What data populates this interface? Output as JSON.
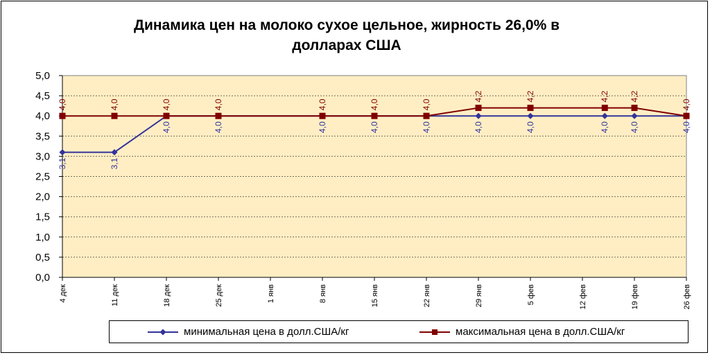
{
  "chart_data": {
    "type": "line",
    "title_line1": "Динамика цен на молоко сухое цельное, жирность 26,0%  в",
    "title_line2": "долларах  США",
    "categories": [
      "4 дек",
      "11 дек",
      "18 дек",
      "25 дек",
      "1 янв",
      "8 янв",
      "15 янв",
      "22 янв",
      "29 янв",
      "5 фев",
      "12 фев",
      "19 фев",
      "26 фев"
    ],
    "y_ticks": [
      "0,0",
      "0,5",
      "1,0",
      "1,5",
      "2,0",
      "2,5",
      "3,0",
      "3,5",
      "4,0",
      "4,5",
      "5,0"
    ],
    "ylim": [
      0,
      5
    ],
    "grid": true,
    "legend_position": "bottom",
    "plot_background": "#ffeec4",
    "series": [
      {
        "name": "минимальная цена в долл.США/кг",
        "color": "#333399",
        "marker": "diamond",
        "points": [
          {
            "x": 0.0,
            "y": 3.1,
            "label": "3,1"
          },
          {
            "x": 1.0,
            "y": 3.1,
            "label": "3,1"
          },
          {
            "x": 2.0,
            "y": 4.0,
            "label": "4,0"
          },
          {
            "x": 3.0,
            "y": 4.0,
            "label": "4,0"
          },
          {
            "x": 5.0,
            "y": 4.0,
            "label": "4,0"
          },
          {
            "x": 6.0,
            "y": 4.0,
            "label": "4,0"
          },
          {
            "x": 7.0,
            "y": 4.0,
            "label": "4,0"
          },
          {
            "x": 8.0,
            "y": 4.0,
            "label": "4,0"
          },
          {
            "x": 9.0,
            "y": 4.0,
            "label": "4,0"
          },
          {
            "x": 10.43,
            "y": 4.0,
            "label": "4,0"
          },
          {
            "x": 11.0,
            "y": 4.0,
            "label": "4,0"
          },
          {
            "x": 12.0,
            "y": 4.0,
            "label": "4,0"
          }
        ]
      },
      {
        "name": "максимальная цена в долл.США/кг",
        "color": "#800000",
        "marker": "square",
        "points": [
          {
            "x": 0.0,
            "y": 4.0,
            "label": "4,0"
          },
          {
            "x": 1.0,
            "y": 4.0,
            "label": "4,0"
          },
          {
            "x": 2.0,
            "y": 4.0,
            "label": "4,0"
          },
          {
            "x": 3.0,
            "y": 4.0,
            "label": "4,0"
          },
          {
            "x": 5.0,
            "y": 4.0,
            "label": "4,0"
          },
          {
            "x": 6.0,
            "y": 4.0,
            "label": "4,0"
          },
          {
            "x": 7.0,
            "y": 4.0,
            "label": "4,0"
          },
          {
            "x": 8.0,
            "y": 4.2,
            "label": "4,2"
          },
          {
            "x": 9.0,
            "y": 4.2,
            "label": "4,2"
          },
          {
            "x": 10.43,
            "y": 4.2,
            "label": "4,2"
          },
          {
            "x": 11.0,
            "y": 4.2,
            "label": "4,2"
          },
          {
            "x": 12.0,
            "y": 4.0,
            "label": "4,0"
          }
        ]
      }
    ]
  }
}
